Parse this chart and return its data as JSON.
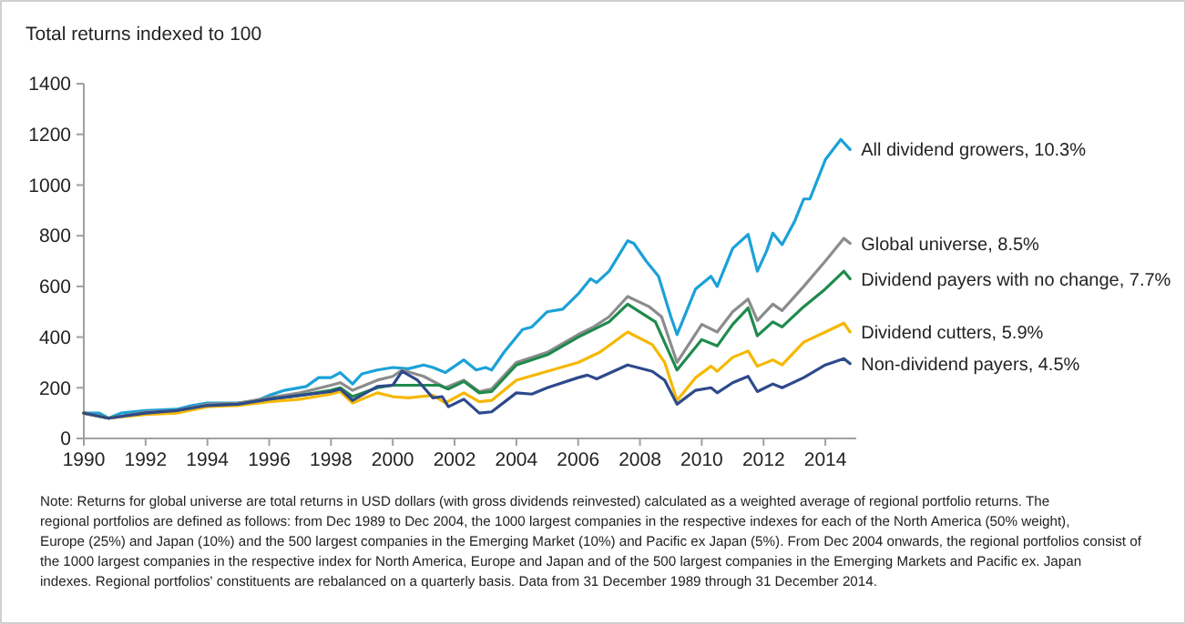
{
  "chart_data": {
    "type": "line",
    "ylabel": "Total returns indexed to 100",
    "xlim": [
      1990,
      2015
    ],
    "xticks": [
      1990,
      1992,
      1994,
      1996,
      1998,
      2000,
      2002,
      2004,
      2006,
      2008,
      2010,
      2012,
      2014
    ],
    "ylim": [
      0,
      1400
    ],
    "yticks": [
      0,
      200,
      400,
      600,
      800,
      1000,
      1200,
      1400
    ],
    "grid": false,
    "legend": false,
    "marker": "none",
    "line_style": "solid",
    "series": [
      {
        "name": "All dividend growers, 10.3%",
        "color": "#1ba1d8",
        "x": [
          1990,
          1990.5,
          1990.8,
          1991.2,
          1992,
          1993,
          1993.5,
          1994,
          1995,
          1995.5,
          1996,
          1996.5,
          1997.2,
          1997.6,
          1998,
          1998.3,
          1998.7,
          1999,
          1999.5,
          2000,
          2000.5,
          2001,
          2001.3,
          2001.7,
          2002.3,
          2002.7,
          2003,
          2003.2,
          2003.6,
          2004.2,
          2004.5,
          2005,
          2005.5,
          2006,
          2006.4,
          2006.6,
          2007,
          2007.6,
          2007.8,
          2008.2,
          2008.6,
          2009,
          2009.2,
          2009.8,
          2010.3,
          2010.5,
          2011,
          2011.5,
          2011.8,
          2012.1,
          2012.3,
          2012.6,
          2013,
          2013.3,
          2013.5,
          2014,
          2014.5,
          2014.8
        ],
        "values": [
          100,
          100,
          80,
          100,
          110,
          115,
          130,
          140,
          140,
          145,
          170,
          190,
          205,
          240,
          240,
          260,
          215,
          255,
          270,
          280,
          275,
          290,
          280,
          260,
          310,
          270,
          280,
          270,
          340,
          430,
          440,
          500,
          510,
          570,
          630,
          615,
          660,
          780,
          770,
          700,
          640,
          480,
          410,
          590,
          640,
          600,
          750,
          805,
          660,
          740,
          810,
          765,
          855,
          945,
          945,
          1100,
          1180,
          1140
        ]
      },
      {
        "name": "Global universe, 8.5%",
        "color": "#8c8c8c",
        "x": [
          1990,
          1990.8,
          1992,
          1993,
          1994,
          1995,
          1996,
          1997,
          1998,
          1998.3,
          1998.7,
          1999.5,
          2000,
          2000.3,
          2001,
          2001.7,
          2002.3,
          2002.8,
          2003.2,
          2004,
          2005,
          2006,
          2006.5,
          2007,
          2007.6,
          2008.3,
          2008.7,
          2009.2,
          2010,
          2010.5,
          2011,
          2011.5,
          2011.8,
          2012.3,
          2012.6,
          2013.3,
          2014,
          2014.6,
          2014.8
        ],
        "values": [
          100,
          80,
          105,
          110,
          135,
          140,
          160,
          180,
          210,
          220,
          190,
          230,
          245,
          270,
          245,
          200,
          230,
          185,
          195,
          300,
          340,
          410,
          440,
          480,
          560,
          520,
          480,
          300,
          450,
          420,
          500,
          550,
          465,
          530,
          505,
          600,
          700,
          790,
          770
        ]
      },
      {
        "name": "Dividend payers with no change, 7.7%",
        "color": "#1f8a4c",
        "x": [
          1990,
          1990.8,
          1992,
          1993,
          1994,
          1995,
          1996,
          1997,
          1998,
          1998.3,
          1998.7,
          1999.5,
          2000,
          2001.5,
          2001.8,
          2002.3,
          2002.8,
          2003.2,
          2004,
          2005,
          2006,
          2007,
          2007.6,
          2008.5,
          2009.2,
          2010,
          2010.5,
          2011,
          2011.5,
          2011.8,
          2012.3,
          2012.6,
          2013.3,
          2014,
          2014.6,
          2014.8
        ],
        "values": [
          100,
          80,
          100,
          108,
          130,
          135,
          155,
          170,
          190,
          200,
          165,
          200,
          210,
          210,
          195,
          225,
          180,
          185,
          290,
          330,
          400,
          460,
          530,
          460,
          270,
          390,
          365,
          450,
          515,
          405,
          460,
          440,
          520,
          590,
          660,
          630
        ]
      },
      {
        "name": "Dividend cutters, 5.9%",
        "color": "#f5b800",
        "x": [
          1990,
          1990.8,
          1992,
          1993,
          1994,
          1995,
          1996,
          1997,
          1998,
          1998.3,
          1998.7,
          1999.5,
          2000,
          2000.5,
          2001.3,
          2001.7,
          2002.3,
          2002.8,
          2003.2,
          2004,
          2005,
          2006,
          2006.7,
          2007.6,
          2008.4,
          2008.8,
          2009.2,
          2009.8,
          2010.3,
          2010.5,
          2011,
          2011.5,
          2011.8,
          2012.3,
          2012.6,
          2013.3,
          2014,
          2014.6,
          2014.8
        ],
        "values": [
          100,
          80,
          95,
          100,
          125,
          130,
          145,
          155,
          175,
          185,
          140,
          180,
          165,
          160,
          170,
          140,
          180,
          145,
          150,
          230,
          265,
          300,
          340,
          420,
          370,
          300,
          150,
          240,
          285,
          265,
          320,
          345,
          285,
          310,
          290,
          380,
          420,
          455,
          420
        ]
      },
      {
        "name": "Non-dividend payers, 4.5%",
        "color": "#2e4a8c",
        "x": [
          1990,
          1990.8,
          1992,
          1993,
          1994,
          1995,
          1996,
          1997,
          1998,
          1998.3,
          1998.7,
          1999.5,
          2000,
          2000.3,
          2000.8,
          2001.3,
          2001.6,
          2001.8,
          2002.3,
          2002.8,
          2003.2,
          2004,
          2004.5,
          2005,
          2006,
          2006.3,
          2006.6,
          2007.6,
          2008.4,
          2008.8,
          2009.2,
          2009.8,
          2010.3,
          2010.5,
          2011,
          2011.5,
          2011.8,
          2012.3,
          2012.6,
          2013.3,
          2014,
          2014.6,
          2014.8
        ],
        "values": [
          100,
          80,
          100,
          110,
          130,
          135,
          155,
          170,
          185,
          195,
          150,
          205,
          210,
          265,
          230,
          160,
          165,
          125,
          155,
          100,
          105,
          180,
          175,
          200,
          240,
          250,
          235,
          290,
          265,
          230,
          135,
          190,
          200,
          180,
          220,
          245,
          185,
          215,
          200,
          240,
          290,
          315,
          295
        ]
      }
    ],
    "annotations": [
      "Note: Returns for global universe are total returns in USD dollars (with gross dividends reinvested) calculated as a weighted average of regional portfolio returns. The regional portfolios are defined as follows: from Dec 1989 to Dec 2004, the 1000 largest companies in the respective indexes for each of the North America (50% weight), Europe (25%) and Japan (10%) and the 500 largest companies in the Emerging Market (10%) and Pacific ex Japan (5%). From Dec 2004 onwards, the regional portfolios consist of the 1000 largest companies in the respective index for North America, Europe and Japan and of the 500 largest companies in the Emerging Markets and Pacific ex. Japan indexes. Regional portfolios' constituents are rebalanced on a quarterly basis. Data from 31 December 1989 through 31 December 2014."
    ]
  }
}
